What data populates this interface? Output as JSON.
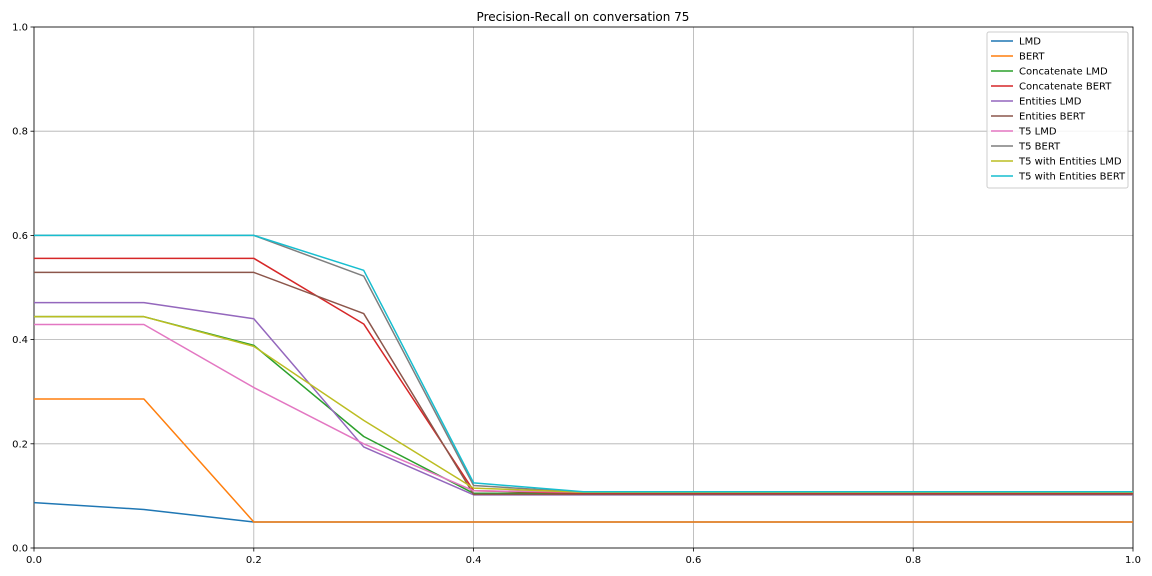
{
  "chart_data": {
    "type": "line",
    "title": "Precision-Recall on conversation 75",
    "xlabel": "",
    "ylabel": "",
    "xlim": [
      0.0,
      1.0
    ],
    "ylim": [
      0.0,
      1.0
    ],
    "xticks": [
      "0.0",
      "0.2",
      "0.4",
      "0.6",
      "0.8",
      "1.0"
    ],
    "yticks": [
      "0.0",
      "0.2",
      "0.4",
      "0.6",
      "0.8",
      "1.0"
    ],
    "grid": true,
    "legend_position": "top-right",
    "x": [
      0.0,
      0.1,
      0.2,
      0.3,
      0.4,
      0.5,
      0.6,
      0.7,
      0.8,
      0.9,
      1.0
    ],
    "series": [
      {
        "name": "LMD",
        "color": "#1f77b4",
        "values": [
          0.087,
          0.074,
          0.05,
          0.05,
          0.05,
          0.05,
          0.05,
          0.05,
          0.05,
          0.05,
          0.05
        ]
      },
      {
        "name": "BERT",
        "color": "#ff7f0e",
        "values": [
          0.286,
          0.286,
          0.05,
          0.05,
          0.05,
          0.05,
          0.05,
          0.05,
          0.05,
          0.05,
          0.05
        ]
      },
      {
        "name": "Concatenate LMD",
        "color": "#2ca02c",
        "values": [
          0.444,
          0.444,
          0.389,
          0.214,
          0.105,
          0.105,
          0.105,
          0.105,
          0.105,
          0.105,
          0.105
        ]
      },
      {
        "name": "Concatenate BERT",
        "color": "#d62728",
        "values": [
          0.556,
          0.556,
          0.556,
          0.43,
          0.11,
          0.105,
          0.105,
          0.105,
          0.105,
          0.105,
          0.105
        ]
      },
      {
        "name": "Entities LMD",
        "color": "#9467bd",
        "values": [
          0.471,
          0.471,
          0.44,
          0.194,
          0.102,
          0.102,
          0.102,
          0.102,
          0.102,
          0.102,
          0.102
        ]
      },
      {
        "name": "Entities BERT",
        "color": "#8c564b",
        "values": [
          0.529,
          0.529,
          0.529,
          0.45,
          0.103,
          0.103,
          0.103,
          0.103,
          0.103,
          0.103,
          0.103
        ]
      },
      {
        "name": "T5 LMD",
        "color": "#e377c2",
        "values": [
          0.429,
          0.429,
          0.308,
          0.2,
          0.11,
          0.107,
          0.107,
          0.107,
          0.107,
          0.107,
          0.107
        ]
      },
      {
        "name": "T5 BERT",
        "color": "#7f7f7f",
        "values": [
          0.6,
          0.6,
          0.6,
          0.522,
          0.12,
          0.107,
          0.107,
          0.107,
          0.107,
          0.107,
          0.107
        ]
      },
      {
        "name": "T5 with Entities LMD",
        "color": "#bcbd22",
        "values": [
          0.444,
          0.444,
          0.387,
          0.245,
          0.115,
          0.107,
          0.107,
          0.107,
          0.107,
          0.107,
          0.107
        ]
      },
      {
        "name": "T5 with Entities BERT",
        "color": "#17becf",
        "values": [
          0.6,
          0.6,
          0.6,
          0.533,
          0.125,
          0.108,
          0.108,
          0.108,
          0.108,
          0.108,
          0.108
        ]
      }
    ]
  }
}
